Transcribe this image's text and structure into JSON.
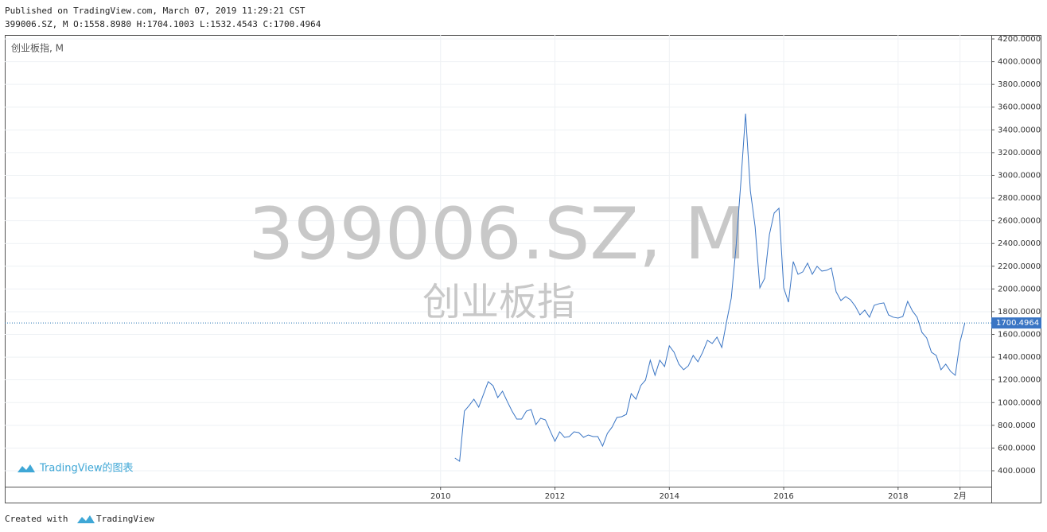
{
  "header": {
    "published": "Published on TradingView.com, March 07, 2019 11:29:21 CST",
    "ohlc": "399006.SZ, M O:1558.8980 H:1704.1003 L:1532.4543 C:1700.4964"
  },
  "footer": {
    "created_with": "Created with",
    "brand": "TradingView"
  },
  "chart_data": {
    "type": "line",
    "legend_title": "创业板指, M",
    "watermark": "399006.SZ, M",
    "watermark_subtitle": "创业板指",
    "logo_text": "TradingView的图表",
    "last_price": 1700.4964,
    "grid": true,
    "xlim": [
      2002.38,
      2019.63
    ],
    "xticks": [
      2010,
      2012,
      2014,
      2016,
      2018,
      {
        "value": 2019.083,
        "label": "2月"
      }
    ],
    "ylim": [
      260,
      4235
    ],
    "yticks": [
      {
        "value": 400,
        "label": "400.0000"
      },
      {
        "value": 600,
        "label": "600.0000"
      },
      {
        "value": 800,
        "label": "800.0000"
      },
      {
        "value": 1000,
        "label": "1000.0000"
      },
      {
        "value": 1200,
        "label": "1200.0000"
      },
      {
        "value": 1400,
        "label": "1400.0000"
      },
      {
        "value": 1600,
        "label": "1600.0000"
      },
      {
        "value": 1800,
        "label": "1800.0000"
      },
      {
        "value": 2000,
        "label": "2000.0000"
      },
      {
        "value": 2200,
        "label": "2200.0000"
      },
      {
        "value": 2400,
        "label": "2400.0000"
      },
      {
        "value": 2600,
        "label": "2600.0000"
      },
      {
        "value": 2800,
        "label": "2800.0000"
      },
      {
        "value": 3000,
        "label": "3000.0000"
      },
      {
        "value": 3200,
        "label": "3200.0000"
      },
      {
        "value": 3400,
        "label": "3400.0000"
      },
      {
        "value": 3600,
        "label": "3600.0000"
      },
      {
        "value": 3800,
        "label": "3800.0000"
      },
      {
        "value": 4000,
        "label": "4000.0000"
      },
      {
        "value": 4200,
        "label": "4200.0000"
      }
    ],
    "x": [
      2010.25,
      2010.333,
      2010.417,
      2010.5,
      2010.583,
      2010.667,
      2010.75,
      2010.833,
      2010.917,
      2011.0,
      2011.083,
      2011.167,
      2011.25,
      2011.333,
      2011.417,
      2011.5,
      2011.583,
      2011.667,
      2011.75,
      2011.833,
      2011.917,
      2012.0,
      2012.083,
      2012.167,
      2012.25,
      2012.333,
      2012.417,
      2012.5,
      2012.583,
      2012.667,
      2012.75,
      2012.833,
      2012.917,
      2013.0,
      2013.083,
      2013.167,
      2013.25,
      2013.333,
      2013.417,
      2013.5,
      2013.583,
      2013.667,
      2013.75,
      2013.833,
      2013.917,
      2014.0,
      2014.083,
      2014.167,
      2014.25,
      2014.333,
      2014.417,
      2014.5,
      2014.583,
      2014.667,
      2014.75,
      2014.833,
      2014.917,
      2015.0,
      2015.083,
      2015.167,
      2015.25,
      2015.333,
      2015.417,
      2015.5,
      2015.583,
      2015.667,
      2015.75,
      2015.833,
      2015.917,
      2016.0,
      2016.083,
      2016.167,
      2016.25,
      2016.333,
      2016.417,
      2016.5,
      2016.583,
      2016.667,
      2016.75,
      2016.833,
      2016.917,
      2017.0,
      2017.083,
      2017.167,
      2017.25,
      2017.333,
      2017.417,
      2017.5,
      2017.583,
      2017.667,
      2017.75,
      2017.833,
      2017.917,
      2018.0,
      2018.083,
      2018.167,
      2018.25,
      2018.333,
      2018.417,
      2018.5,
      2018.583,
      2018.667,
      2018.75,
      2018.833,
      2018.917,
      2019.0,
      2019.083,
      2019.167
    ],
    "series": [
      {
        "name": "399006.SZ",
        "color": "#3a75c4",
        "values": [
          512,
          484,
          925,
          974,
          1030,
          960,
          1072,
          1184,
          1149,
          1044,
          1100,
          1009,
          925,
          855,
          855,
          925,
          939,
          806,
          862,
          848,
          750,
          659,
          743,
          694,
          701,
          743,
          736,
          694,
          715,
          701,
          701,
          617,
          729,
          785,
          869,
          876,
          897,
          1079,
          1030,
          1149,
          1198,
          1373,
          1240,
          1373,
          1317,
          1499,
          1443,
          1338,
          1289,
          1324,
          1415,
          1359,
          1443,
          1548,
          1520,
          1576,
          1485,
          1709,
          1919,
          2374,
          2934,
          3543,
          2864,
          2549,
          2010,
          2094,
          2479,
          2668,
          2710,
          2010,
          1884,
          2241,
          2129,
          2150,
          2227,
          2129,
          2199,
          2157,
          2164,
          2185,
          1975,
          1898,
          1933,
          1905,
          1849,
          1772,
          1814,
          1751,
          1856,
          1870,
          1877,
          1772,
          1751,
          1744,
          1758,
          1891,
          1807,
          1751,
          1618,
          1569,
          1443,
          1415,
          1289,
          1338,
          1275,
          1240,
          1534,
          1700.4964
        ]
      }
    ]
  }
}
